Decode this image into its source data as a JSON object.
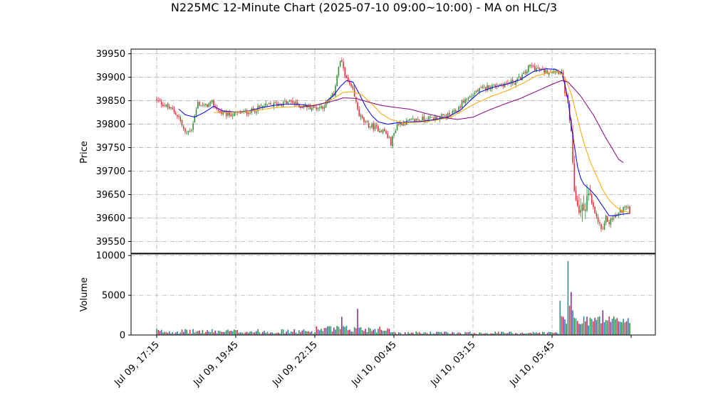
{
  "chart_data": {
    "type": "candlestick",
    "title": "N225MC 12-Minute Chart (2025-07-10 09:00~10:00) - MA on HLC/3",
    "price_panel": {
      "ylabel": "Price",
      "ylim": [
        39525,
        39960
      ],
      "yticks": [
        39550,
        39600,
        39650,
        39700,
        39750,
        39800,
        39850,
        39900,
        39950
      ],
      "grid": true,
      "up_color": "#2e8b2e",
      "down_color": "#e03030"
    },
    "volume_panel": {
      "ylabel": "Volume",
      "ylim": [
        0,
        10200
      ],
      "yticks": [
        0,
        5000,
        10000
      ],
      "grid": true,
      "bar_colors": [
        "#2e8b8b",
        "#e03030",
        "#8b2e8b",
        "#1f77b4",
        "#2e8b2e"
      ]
    },
    "x_axis": {
      "tick_labels": [
        "Jul 09, 17:15",
        "Jul 09, 19:45",
        "Jul 09, 22:15",
        "Jul 10, 00:45",
        "Jul 10, 03:15",
        "Jul 10, 05:45"
      ],
      "label_rotation": 45
    },
    "close_anchors": [
      [
        0,
        39850
      ],
      [
        3,
        39845
      ],
      [
        6,
        39838
      ],
      [
        10,
        39830
      ],
      [
        14,
        39815
      ],
      [
        18,
        39780
      ],
      [
        22,
        39790
      ],
      [
        26,
        39845
      ],
      [
        30,
        39838
      ],
      [
        35,
        39845
      ],
      [
        40,
        39825
      ],
      [
        45,
        39820
      ],
      [
        50,
        39822
      ],
      [
        55,
        39825
      ],
      [
        60,
        39828
      ],
      [
        65,
        39835
      ],
      [
        70,
        39840
      ],
      [
        75,
        39842
      ],
      [
        80,
        39845
      ],
      [
        85,
        39848
      ],
      [
        90,
        39840
      ],
      [
        95,
        39838
      ],
      [
        100,
        39835
      ],
      [
        105,
        39838
      ],
      [
        108,
        39845
      ],
      [
        112,
        39865
      ],
      [
        114,
        39905
      ],
      [
        116,
        39935
      ],
      [
        118,
        39920
      ],
      [
        120,
        39895
      ],
      [
        124,
        39870
      ],
      [
        128,
        39820
      ],
      [
        132,
        39800
      ],
      [
        136,
        39795
      ],
      [
        140,
        39790
      ],
      [
        144,
        39785
      ],
      [
        148,
        39760
      ],
      [
        152,
        39800
      ],
      [
        158,
        39805
      ],
      [
        165,
        39810
      ],
      [
        172,
        39812
      ],
      [
        180,
        39815
      ],
      [
        186,
        39820
      ],
      [
        190,
        39830
      ],
      [
        194,
        39850
      ],
      [
        198,
        39858
      ],
      [
        202,
        39870
      ],
      [
        210,
        39880
      ],
      [
        218,
        39885
      ],
      [
        226,
        39890
      ],
      [
        232,
        39905
      ],
      [
        236,
        39925
      ],
      [
        240,
        39918
      ],
      [
        246,
        39912
      ],
      [
        252,
        39915
      ],
      [
        256,
        39910
      ],
      [
        258,
        39870
      ],
      [
        260,
        39840
      ],
      [
        262,
        39780
      ],
      [
        263,
        39700
      ],
      [
        264,
        39660
      ],
      [
        266,
        39630
      ],
      [
        268,
        39610
      ],
      [
        270,
        39620
      ],
      [
        272,
        39650
      ],
      [
        274,
        39640
      ],
      [
        276,
        39620
      ],
      [
        278,
        39600
      ],
      [
        280,
        39585
      ],
      [
        282,
        39570
      ],
      [
        284,
        39600
      ],
      [
        286,
        39590
      ],
      [
        288,
        39600
      ],
      [
        292,
        39610
      ],
      [
        296,
        39625
      ],
      [
        299,
        39615
      ]
    ],
    "ma_series": [
      {
        "name": "",
        "color": "#0000ee",
        "points": [
          [
            14,
            39832
          ],
          [
            18,
            39820
          ],
          [
            24,
            39815
          ],
          [
            30,
            39825
          ],
          [
            36,
            39838
          ],
          [
            42,
            39828
          ],
          [
            50,
            39826
          ],
          [
            58,
            39828
          ],
          [
            66,
            39835
          ],
          [
            74,
            39840
          ],
          [
            82,
            39843
          ],
          [
            90,
            39842
          ],
          [
            98,
            39839
          ],
          [
            106,
            39845
          ],
          [
            112,
            39862
          ],
          [
            116,
            39880
          ],
          [
            120,
            39893
          ],
          [
            124,
            39890
          ],
          [
            128,
            39865
          ],
          [
            132,
            39838
          ],
          [
            136,
            39818
          ],
          [
            140,
            39805
          ],
          [
            146,
            39800
          ],
          [
            152,
            39803
          ],
          [
            160,
            39805
          ],
          [
            168,
            39806
          ],
          [
            176,
            39810
          ],
          [
            184,
            39815
          ],
          [
            192,
            39830
          ],
          [
            198,
            39850
          ],
          [
            204,
            39868
          ],
          [
            212,
            39878
          ],
          [
            222,
            39886
          ],
          [
            230,
            39895
          ],
          [
            238,
            39912
          ],
          [
            246,
            39918
          ],
          [
            252,
            39917
          ],
          [
            256,
            39910
          ],
          [
            258,
            39885
          ],
          [
            260,
            39852
          ],
          [
            262,
            39800
          ],
          [
            264,
            39755
          ],
          [
            266,
            39710
          ],
          [
            268,
            39685
          ],
          [
            270,
            39672
          ],
          [
            274,
            39660
          ],
          [
            278,
            39645
          ],
          [
            282,
            39625
          ],
          [
            286,
            39605
          ],
          [
            290,
            39605
          ],
          [
            294,
            39608
          ],
          [
            299,
            39610
          ]
        ]
      },
      {
        "name": "",
        "color": "#ffa500",
        "points": [
          [
            36,
            39825
          ],
          [
            44,
            39825
          ],
          [
            54,
            39826
          ],
          [
            64,
            39830
          ],
          [
            74,
            39835
          ],
          [
            84,
            39837
          ],
          [
            94,
            39838
          ],
          [
            104,
            39843
          ],
          [
            112,
            39855
          ],
          [
            118,
            39868
          ],
          [
            124,
            39869
          ],
          [
            130,
            39862
          ],
          [
            136,
            39843
          ],
          [
            142,
            39822
          ],
          [
            148,
            39810
          ],
          [
            156,
            39803
          ],
          [
            166,
            39804
          ],
          [
            176,
            39808
          ],
          [
            186,
            39815
          ],
          [
            194,
            39830
          ],
          [
            202,
            39845
          ],
          [
            212,
            39860
          ],
          [
            222,
            39872
          ],
          [
            232,
            39888
          ],
          [
            240,
            39903
          ],
          [
            248,
            39910
          ],
          [
            254,
            39913
          ],
          [
            258,
            39900
          ],
          [
            262,
            39865
          ],
          [
            266,
            39812
          ],
          [
            270,
            39760
          ],
          [
            274,
            39720
          ],
          [
            278,
            39690
          ],
          [
            282,
            39660
          ],
          [
            286,
            39638
          ],
          [
            290,
            39625
          ],
          [
            294,
            39615
          ],
          [
            299,
            39612
          ]
        ]
      },
      {
        "name": "",
        "color": "#800080",
        "points": [
          [
            90,
            39836
          ],
          [
            100,
            39840
          ],
          [
            110,
            39848
          ],
          [
            118,
            39856
          ],
          [
            126,
            39855
          ],
          [
            134,
            39847
          ],
          [
            142,
            39840
          ],
          [
            150,
            39836
          ],
          [
            160,
            39832
          ],
          [
            170,
            39823
          ],
          [
            180,
            39815
          ],
          [
            190,
            39810
          ],
          [
            200,
            39815
          ],
          [
            210,
            39830
          ],
          [
            220,
            39843
          ],
          [
            230,
            39855
          ],
          [
            240,
            39870
          ],
          [
            250,
            39885
          ],
          [
            256,
            39893
          ],
          [
            260,
            39890
          ],
          [
            264,
            39875
          ],
          [
            268,
            39860
          ],
          [
            272,
            39840
          ],
          [
            276,
            39820
          ],
          [
            280,
            39795
          ],
          [
            284,
            39770
          ],
          [
            288,
            39748
          ],
          [
            292,
            39725
          ],
          [
            295,
            39718
          ]
        ]
      }
    ]
  }
}
